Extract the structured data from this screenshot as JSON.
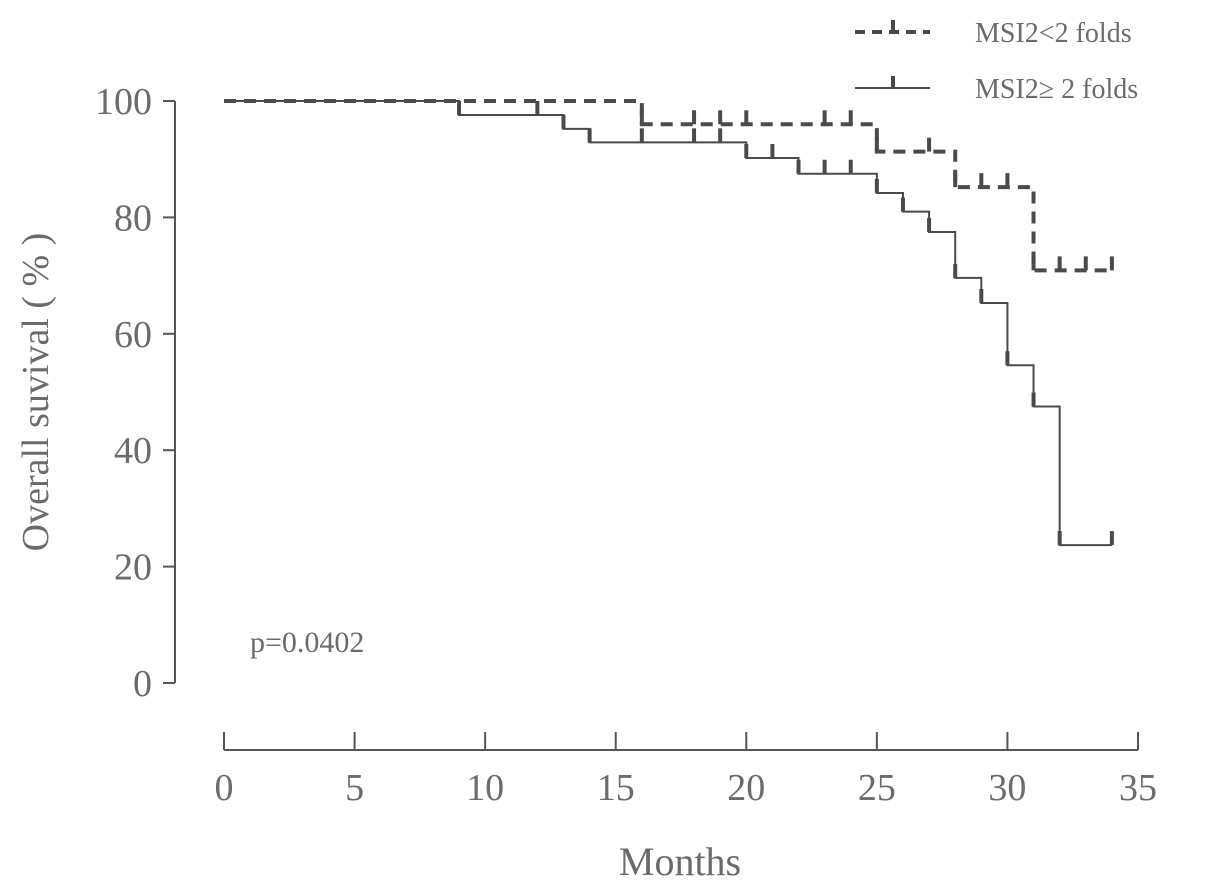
{
  "chart_data": {
    "type": "line",
    "subtype": "kaplan-meier",
    "title": "",
    "xlabel": "Months",
    "ylabel": "Overall suvival ( % )",
    "xlim": [
      0,
      35
    ],
    "ylim": [
      0,
      100
    ],
    "xticks": [
      "0",
      "5",
      "10",
      "15",
      "20",
      "25",
      "30",
      "35"
    ],
    "yticks": [
      "0",
      "20",
      "40",
      "60",
      "80",
      "100"
    ],
    "annotation": "p=0.0402",
    "legend_position": "top-right",
    "grid": false,
    "series": [
      {
        "name": "MSI2<2 folds",
        "style": "dashed",
        "steps": [
          [
            0,
            100
          ],
          [
            16,
            96
          ],
          [
            25,
            91.3
          ],
          [
            28,
            85.2
          ],
          [
            31,
            70.9
          ]
        ],
        "end": 34,
        "censored": [
          [
            18,
            96
          ],
          [
            19,
            96
          ],
          [
            20,
            96
          ],
          [
            23,
            96
          ],
          [
            24,
            96
          ],
          [
            27,
            91.3
          ],
          [
            29,
            85.2
          ],
          [
            30,
            85.2
          ],
          [
            32,
            70.9
          ],
          [
            33,
            70.9
          ],
          [
            34,
            70.9
          ]
        ]
      },
      {
        "name": "MSI2≥ 2 folds",
        "style": "solid",
        "steps": [
          [
            0,
            100
          ],
          [
            9,
            97.6
          ],
          [
            13,
            95.2
          ],
          [
            14,
            92.9
          ],
          [
            20,
            90.2
          ],
          [
            22,
            87.5
          ],
          [
            25,
            84.2
          ],
          [
            26,
            81
          ],
          [
            27,
            77.5
          ],
          [
            28,
            69.6
          ],
          [
            29,
            65.3
          ],
          [
            30,
            54.6
          ],
          [
            31,
            47.5
          ],
          [
            32,
            23.7
          ]
        ],
        "end": 34,
        "censored": [
          [
            12,
            97.6
          ],
          [
            16,
            92.9
          ],
          [
            18,
            92.9
          ],
          [
            19,
            92.9
          ],
          [
            21,
            90.2
          ],
          [
            23,
            87.5
          ],
          [
            24,
            87.5
          ],
          [
            34,
            23.7
          ]
        ]
      }
    ]
  },
  "colors": {
    "line": "#4a4a4a",
    "axis": "#555555",
    "text": "#6b6b6b"
  }
}
